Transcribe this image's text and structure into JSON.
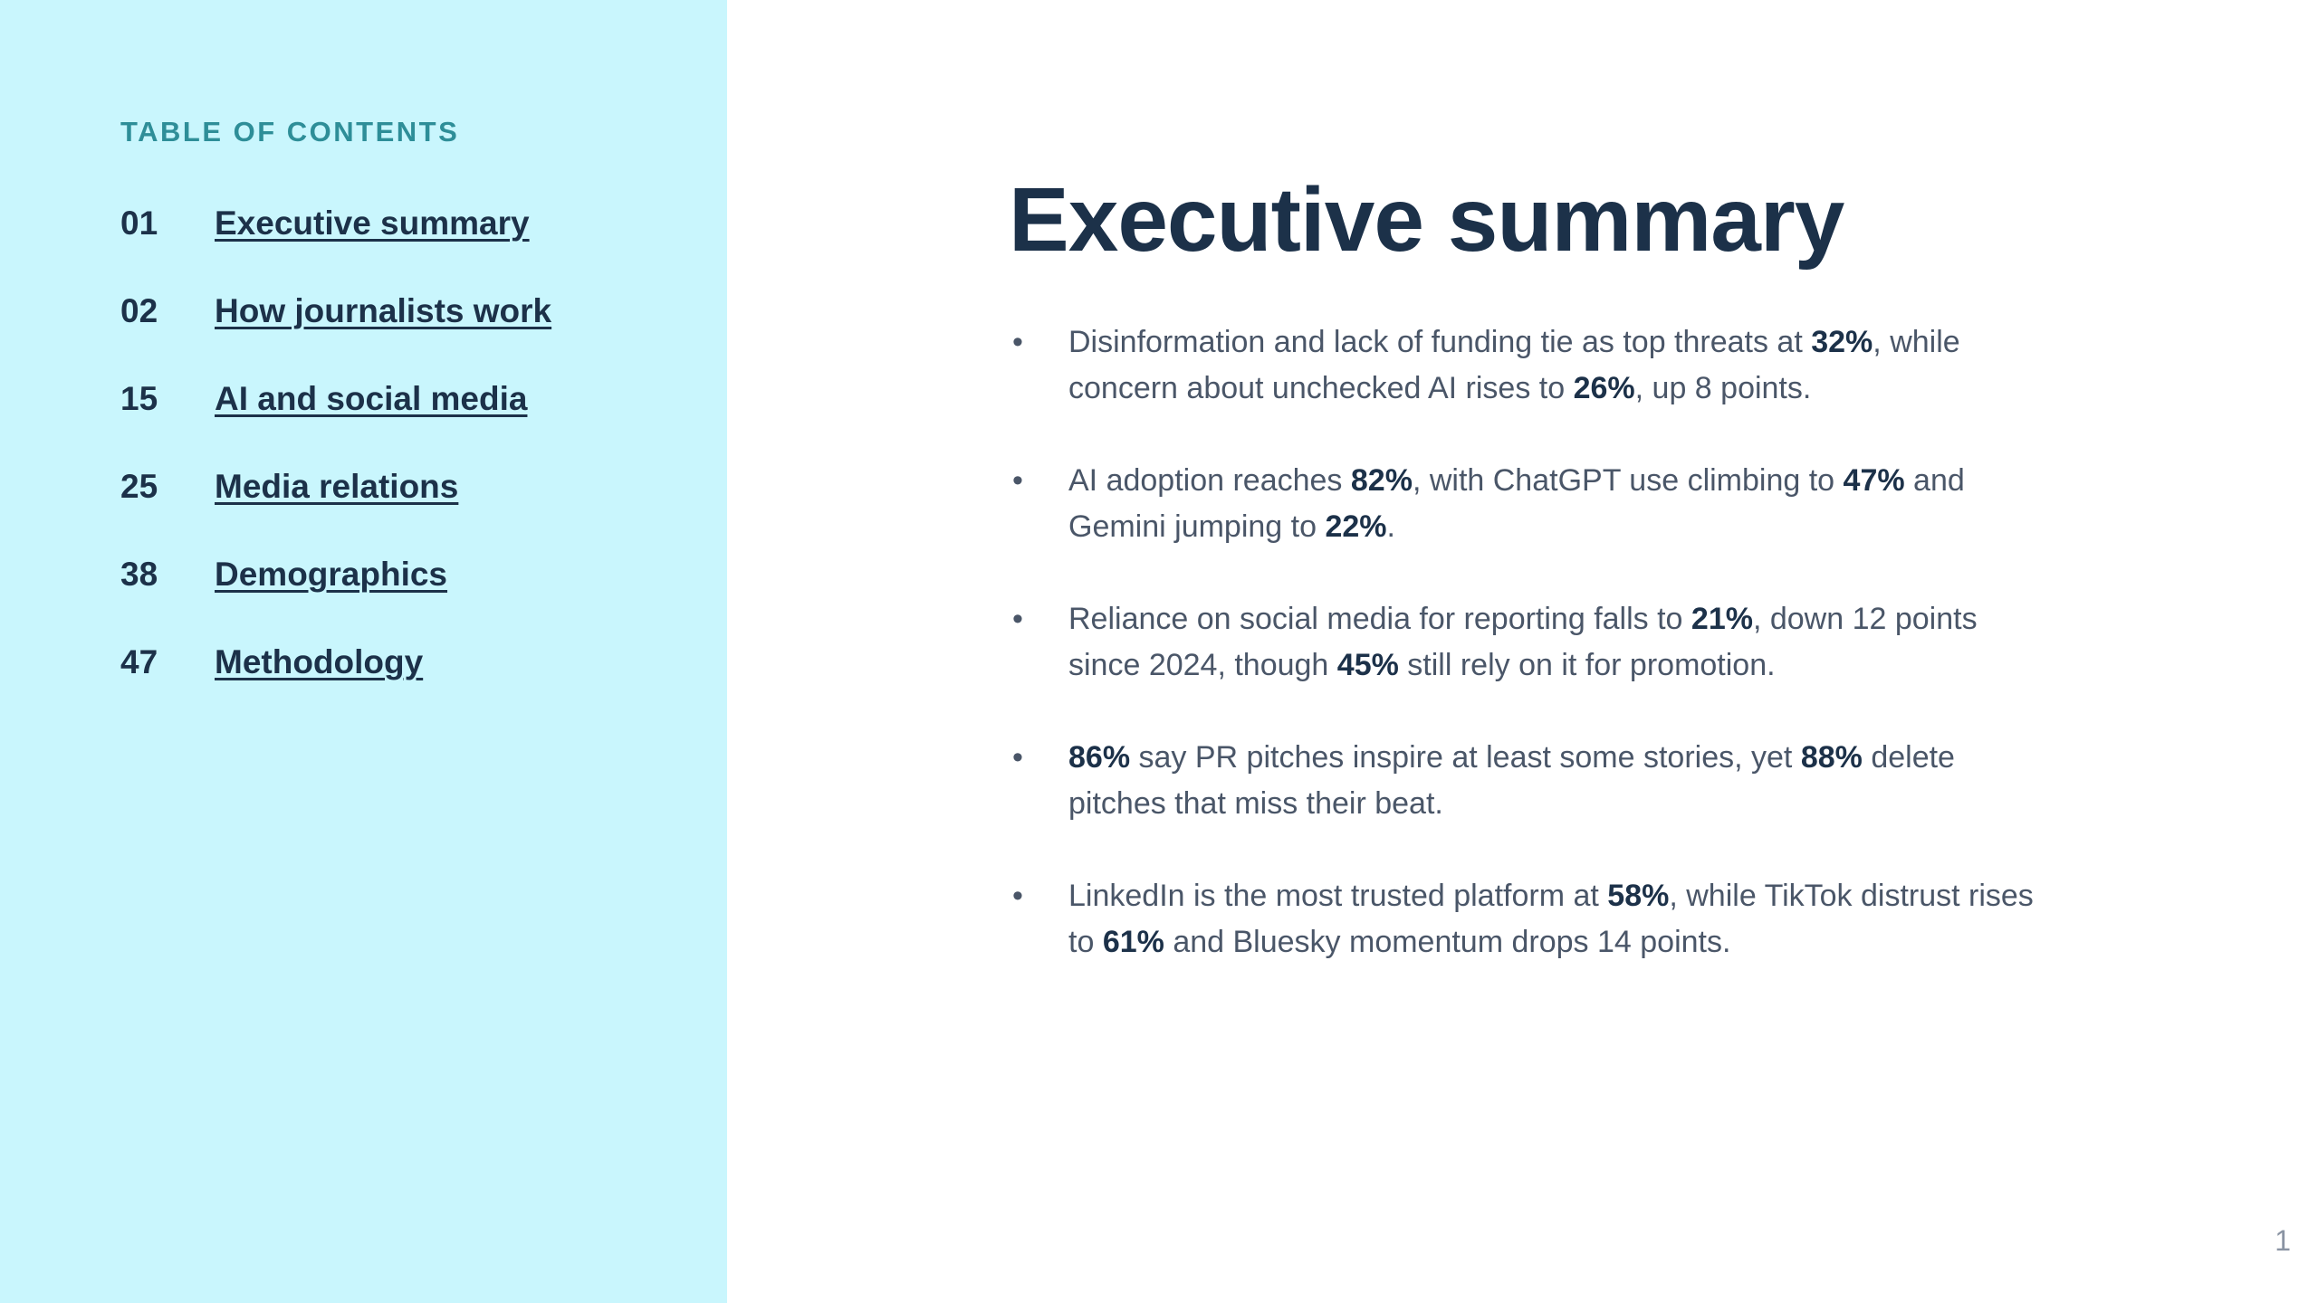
{
  "sidebar": {
    "heading": "TABLE OF CONTENTS",
    "items": [
      {
        "number": "01",
        "label": "Executive summary"
      },
      {
        "number": "02",
        "label": "How journalists work"
      },
      {
        "number": "15",
        "label": "AI and social media"
      },
      {
        "number": "25",
        "label": "Media relations"
      },
      {
        "number": "38",
        "label": "Demographics"
      },
      {
        "number": "47",
        "label": "Methodology"
      }
    ]
  },
  "main": {
    "title": "Executive summary",
    "bullets": [
      {
        "glyph": "•",
        "parts": [
          {
            "t": "Disinformation and lack of funding tie as top threats at "
          },
          {
            "t": "32%",
            "b": true
          },
          {
            "t": ", while concern about unchecked AI rises to "
          },
          {
            "t": "26%",
            "b": true
          },
          {
            "t": ", up 8 points."
          }
        ]
      },
      {
        "glyph": "•",
        "parts": [
          {
            "t": "AI adoption reaches "
          },
          {
            "t": "82%",
            "b": true
          },
          {
            "t": ", with ChatGPT use climbing to "
          },
          {
            "t": "47%",
            "b": true
          },
          {
            "t": " and Gemini jumping to "
          },
          {
            "t": "22%",
            "b": true
          },
          {
            "t": "."
          }
        ]
      },
      {
        "glyph": "•",
        "parts": [
          {
            "t": "Reliance on social media for reporting falls to "
          },
          {
            "t": "21%",
            "b": true
          },
          {
            "t": ", down 12 points since 2024, though "
          },
          {
            "t": "45%",
            "b": true
          },
          {
            "t": " still rely on it for promotion."
          }
        ]
      },
      {
        "glyph": "•",
        "parts": [
          {
            "t": "86%",
            "b": true
          },
          {
            "t": " say PR pitches inspire at least some stories, yet "
          },
          {
            "t": "88%",
            "b": true
          },
          {
            "t": " delete pitches that miss their beat."
          }
        ]
      },
      {
        "glyph": "•",
        "parts": [
          {
            "t": "LinkedIn is the most trusted platform at "
          },
          {
            "t": "58%",
            "b": true
          },
          {
            "t": ", while TikTok distrust rises to "
          },
          {
            "t": "61%",
            "b": true
          },
          {
            "t": " and Bluesky momentum drops 14 points."
          }
        ]
      }
    ]
  },
  "page_number": "1",
  "colors": {
    "sidebar_bg": "#c9f6fd",
    "heading_accent": "#2e8e98",
    "navy": "#1c3149",
    "body_text": "#4a5668"
  }
}
